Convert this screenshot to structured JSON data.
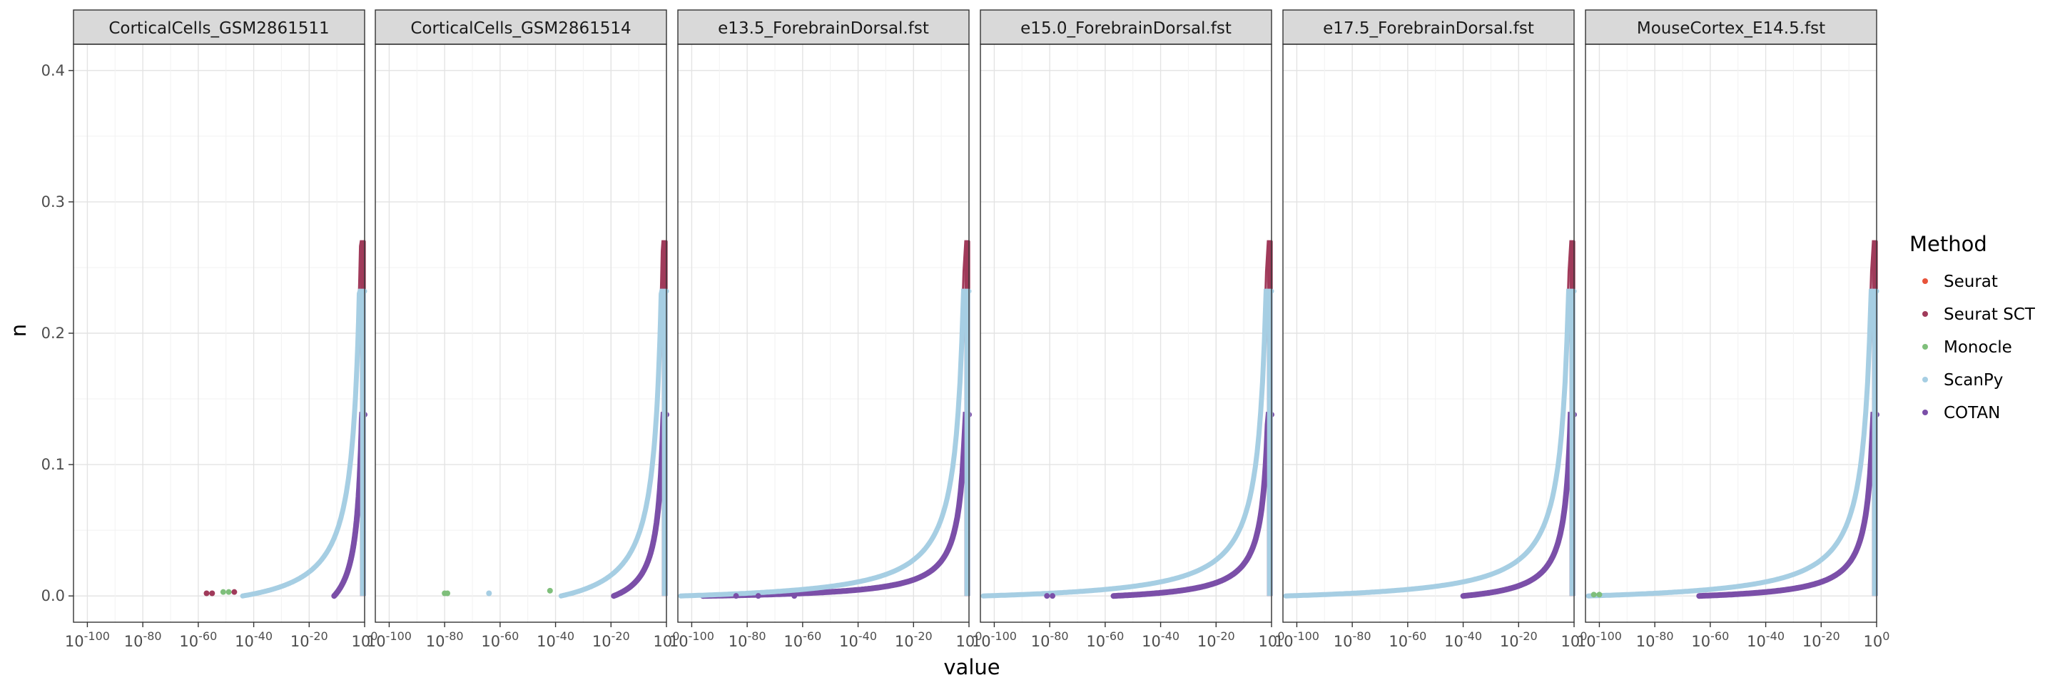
{
  "chart_data": {
    "type": "scatter",
    "xlabel": "value",
    "ylabel": "n",
    "x_scale": "log10",
    "xlim_exponent": [
      -105,
      0
    ],
    "ylim": [
      -0.02,
      0.42
    ],
    "x_ticks": [
      -100,
      -80,
      -60,
      -40,
      -20,
      0
    ],
    "y_ticks": [
      0.0,
      0.1,
      0.2,
      0.3,
      0.4
    ],
    "y_tick_labels": [
      "0.0",
      "0.1",
      "0.2",
      "0.3",
      "0.4"
    ],
    "x_tick_base": "10",
    "grid": true,
    "legend": {
      "title": "Method",
      "placement": "right",
      "entries": [
        {
          "name": "Seurat",
          "color": "#e8533a"
        },
        {
          "name": "Seurat SCT",
          "color": "#a03a5a"
        },
        {
          "name": "Monocle",
          "color": "#7fbf7b"
        },
        {
          "name": "ScanPy",
          "color": "#a6cee3"
        },
        {
          "name": "COTAN",
          "color": "#7b4fa8"
        }
      ]
    },
    "panels": [
      {
        "title": "CorticalCells_GSM2861511",
        "x_start_exponent": -44,
        "cotan_start_exponent": -11,
        "sparse_points": [
          {
            "method": "Seurat SCT",
            "x_exponent": -57,
            "n": 0.002
          },
          {
            "method": "Seurat SCT",
            "x_exponent": -55,
            "n": 0.002
          },
          {
            "method": "Monocle",
            "x_exponent": -51,
            "n": 0.003
          },
          {
            "method": "Seurat SCT",
            "x_exponent": -47,
            "n": 0.003
          },
          {
            "method": "Monocle",
            "x_exponent": -49,
            "n": 0.003
          }
        ]
      },
      {
        "title": "CorticalCells_GSM2861514",
        "x_start_exponent": -38,
        "cotan_start_exponent": -19,
        "sparse_points": [
          {
            "method": "Monocle",
            "x_exponent": -80,
            "n": 0.002
          },
          {
            "method": "Monocle",
            "x_exponent": -79,
            "n": 0.002
          },
          {
            "method": "ScanPy",
            "x_exponent": -64,
            "n": 0.002
          },
          {
            "method": "Monocle",
            "x_exponent": -42,
            "n": 0.004
          }
        ]
      },
      {
        "title": "e13.5_ForebrainDorsal.fst",
        "x_start_exponent": -104,
        "cotan_start_exponent": -96,
        "sparse_points": [
          {
            "method": "COTAN",
            "x_exponent": -84,
            "n": 0.0
          },
          {
            "method": "COTAN",
            "x_exponent": -76,
            "n": 0.0
          },
          {
            "method": "COTAN",
            "x_exponent": -63,
            "n": 0.0
          }
        ]
      },
      {
        "title": "e15.0_ForebrainDorsal.fst",
        "x_start_exponent": -104,
        "cotan_start_exponent": -57,
        "sparse_points": [
          {
            "method": "COTAN",
            "x_exponent": -81,
            "n": 0.0
          },
          {
            "method": "COTAN",
            "x_exponent": -79,
            "n": 0.0
          }
        ]
      },
      {
        "title": "e17.5_ForebrainDorsal.fst",
        "x_start_exponent": -104,
        "cotan_start_exponent": -40,
        "sparse_points": []
      },
      {
        "title": "MouseCortex_E14.5.fst",
        "x_start_exponent": -104,
        "cotan_start_exponent": -64,
        "sparse_points": [
          {
            "method": "Monocle",
            "x_exponent": -102,
            "n": 0.001
          },
          {
            "method": "Monocle",
            "x_exponent": -100,
            "n": 0.001
          }
        ]
      }
    ],
    "curves": {
      "Seurat SCT": {
        "max_n": 0.27,
        "scale": 0.75
      },
      "ScanPy": {
        "max_n": 0.232,
        "scale": 0.72
      },
      "COTAN": {
        "max_n": 0.138,
        "scale": 0.33
      }
    }
  }
}
